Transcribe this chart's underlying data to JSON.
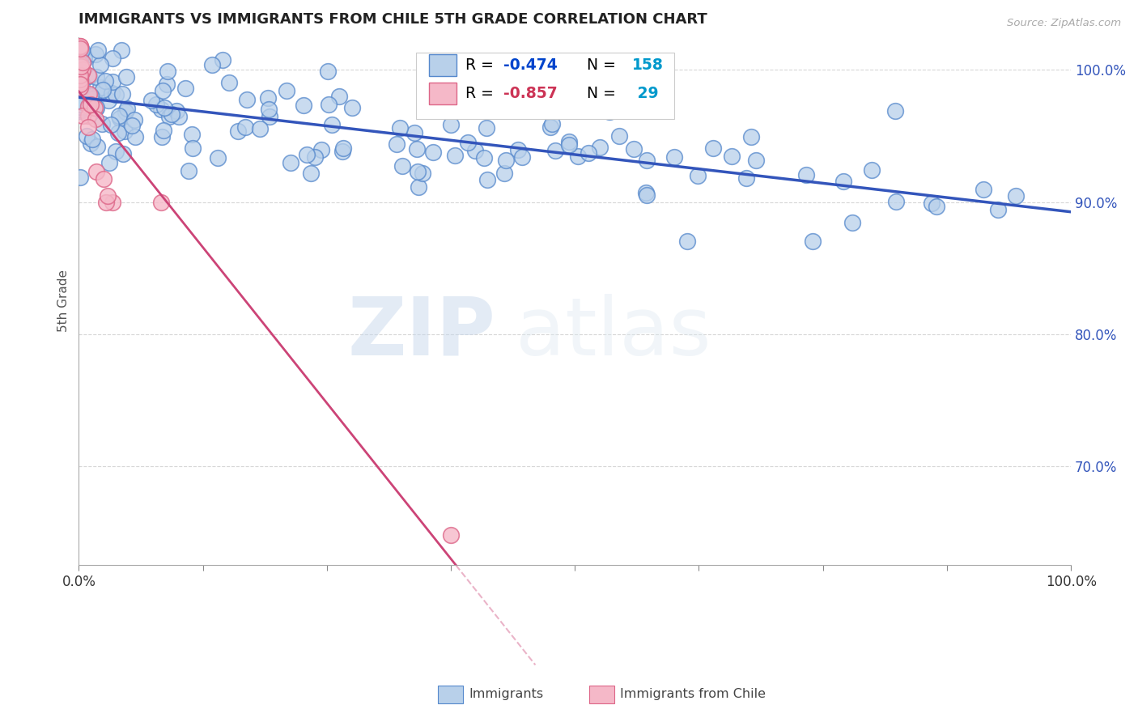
{
  "title": "IMMIGRANTS VS IMMIGRANTS FROM CHILE 5TH GRADE CORRELATION CHART",
  "source": "Source: ZipAtlas.com",
  "xlabel_blue": "Immigrants",
  "xlabel_pink": "Immigrants from Chile",
  "ylabel": "5th Grade",
  "watermark_zip": "ZIP",
  "watermark_atlas": "atlas",
  "blue_R": -0.474,
  "blue_N": 158,
  "pink_R": -0.857,
  "pink_N": 29,
  "blue_color": "#b8d0ea",
  "blue_edge_color": "#5588cc",
  "blue_line_color": "#3355bb",
  "pink_color": "#f5b8c8",
  "pink_edge_color": "#dd6688",
  "pink_line_color": "#cc4477",
  "legend_R_color_blue": "#0044cc",
  "legend_N_color_blue": "#0099cc",
  "legend_R_color_pink": "#cc3355",
  "legend_N_color_pink": "#0099cc",
  "background_color": "#ffffff",
  "grid_color": "#cccccc",
  "title_color": "#222222",
  "ytick_color": "#3355bb",
  "xmin": 0.0,
  "xmax": 1.0,
  "ymin": 0.625,
  "ymax": 1.025,
  "yticks": [
    0.7,
    0.8,
    0.9,
    1.0
  ],
  "ytick_labels": [
    "70.0%",
    "80.0%",
    "90.0%",
    "100.0%"
  ],
  "figsize": [
    14.06,
    8.92
  ],
  "dpi": 100,
  "blue_scatter_seed": 42,
  "pink_scatter_seed": 99
}
